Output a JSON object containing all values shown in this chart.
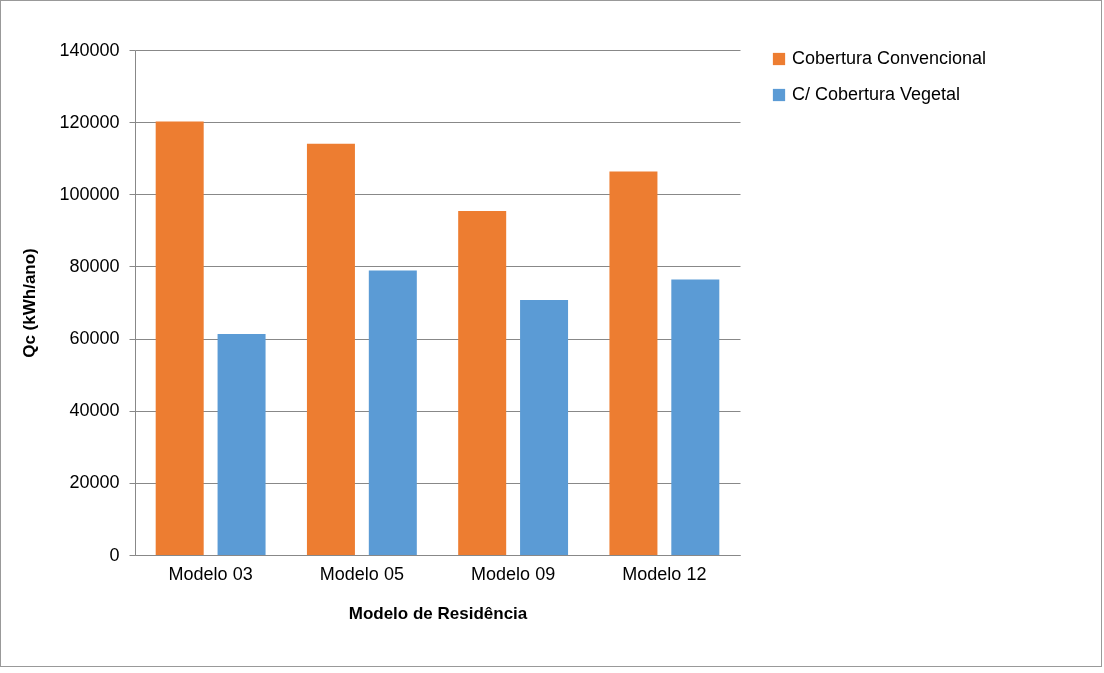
{
  "chart_data": {
    "type": "bar",
    "xlabel": "Modelo de Residência",
    "ylabel": "Qc (kWh/ano)",
    "categories": [
      "Modelo 03",
      "Modelo 05",
      "Modelo 09",
      "Modelo 12"
    ],
    "series": [
      {
        "name": "Cobertura Convencional",
        "color": "#ed7d31",
        "values": [
          120200,
          114000,
          95400,
          106300
        ]
      },
      {
        "name": "C/ Cobertura Vegetal",
        "color": "#5b9bd5",
        "values": [
          61300,
          78900,
          70700,
          76400
        ]
      }
    ],
    "ylim": [
      0,
      140000
    ],
    "yticks": [
      0,
      20000,
      40000,
      60000,
      80000,
      100000,
      120000,
      140000
    ],
    "grid": "y",
    "legend": "right"
  }
}
